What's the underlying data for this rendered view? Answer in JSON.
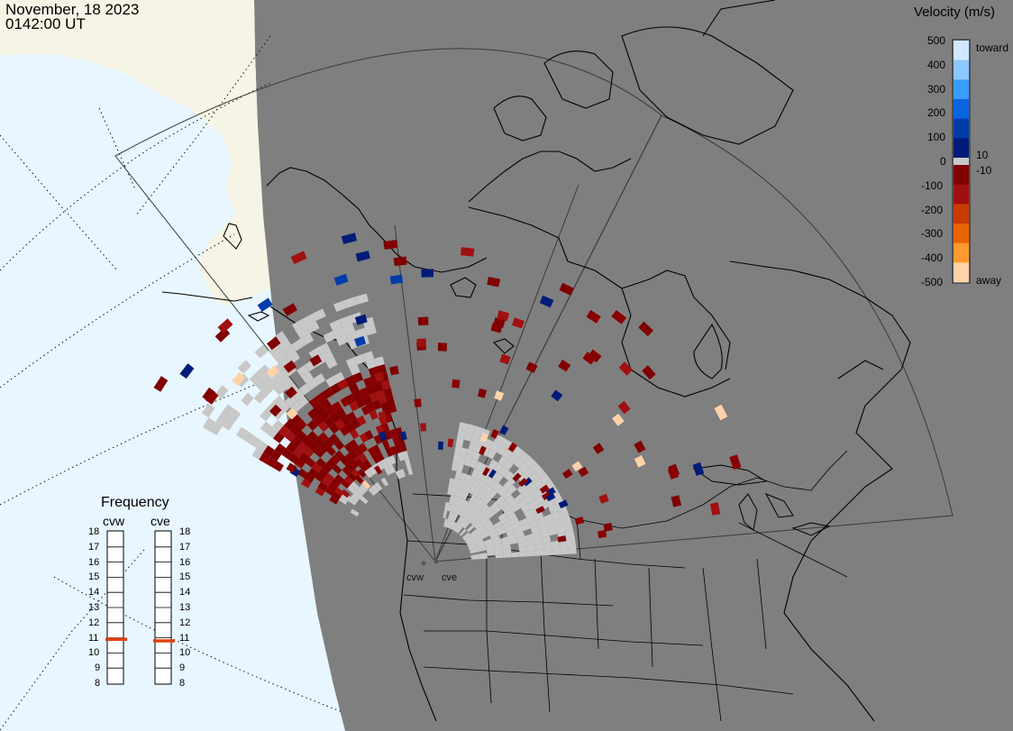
{
  "header": {
    "date": "November, 18 2023",
    "time": "0142:00 UT"
  },
  "velocity_scale": {
    "title": "Velocity (m/s)",
    "ticks": [
      "500",
      "400",
      "300",
      "200",
      "100",
      "0",
      "-100",
      "-200",
      "-300",
      "-400",
      "-500"
    ],
    "small_ticks": [
      "10",
      "-10"
    ],
    "toward_label": "toward",
    "away_label": "away",
    "colors": {
      "toward": [
        "#cfe8ff",
        "#8cc8ff",
        "#3a9cff",
        "#0a64e0",
        "#003ca8",
        "#001c78"
      ],
      "away": [
        "#800000",
        "#a01010",
        "#c83c00",
        "#e86400",
        "#ff9a30",
        "#ffd2aa"
      ],
      "ground_scatter": "#c8c8c8"
    }
  },
  "frequency": {
    "title": "Frequency",
    "radars": [
      "cvw",
      "cve"
    ],
    "ticks": [
      "18",
      "17",
      "16",
      "15",
      "14",
      "13",
      "12",
      "11",
      "10",
      "9",
      "8"
    ],
    "values_mhz": [
      10.9,
      10.8
    ],
    "marker_color": "#e04010"
  },
  "sites": {
    "labels": [
      "cvw",
      "cve"
    ]
  },
  "map_colors": {
    "night": "#7f7f7f",
    "day_ocean": "#e8f6ff",
    "day_land": "#f6f4e4"
  }
}
